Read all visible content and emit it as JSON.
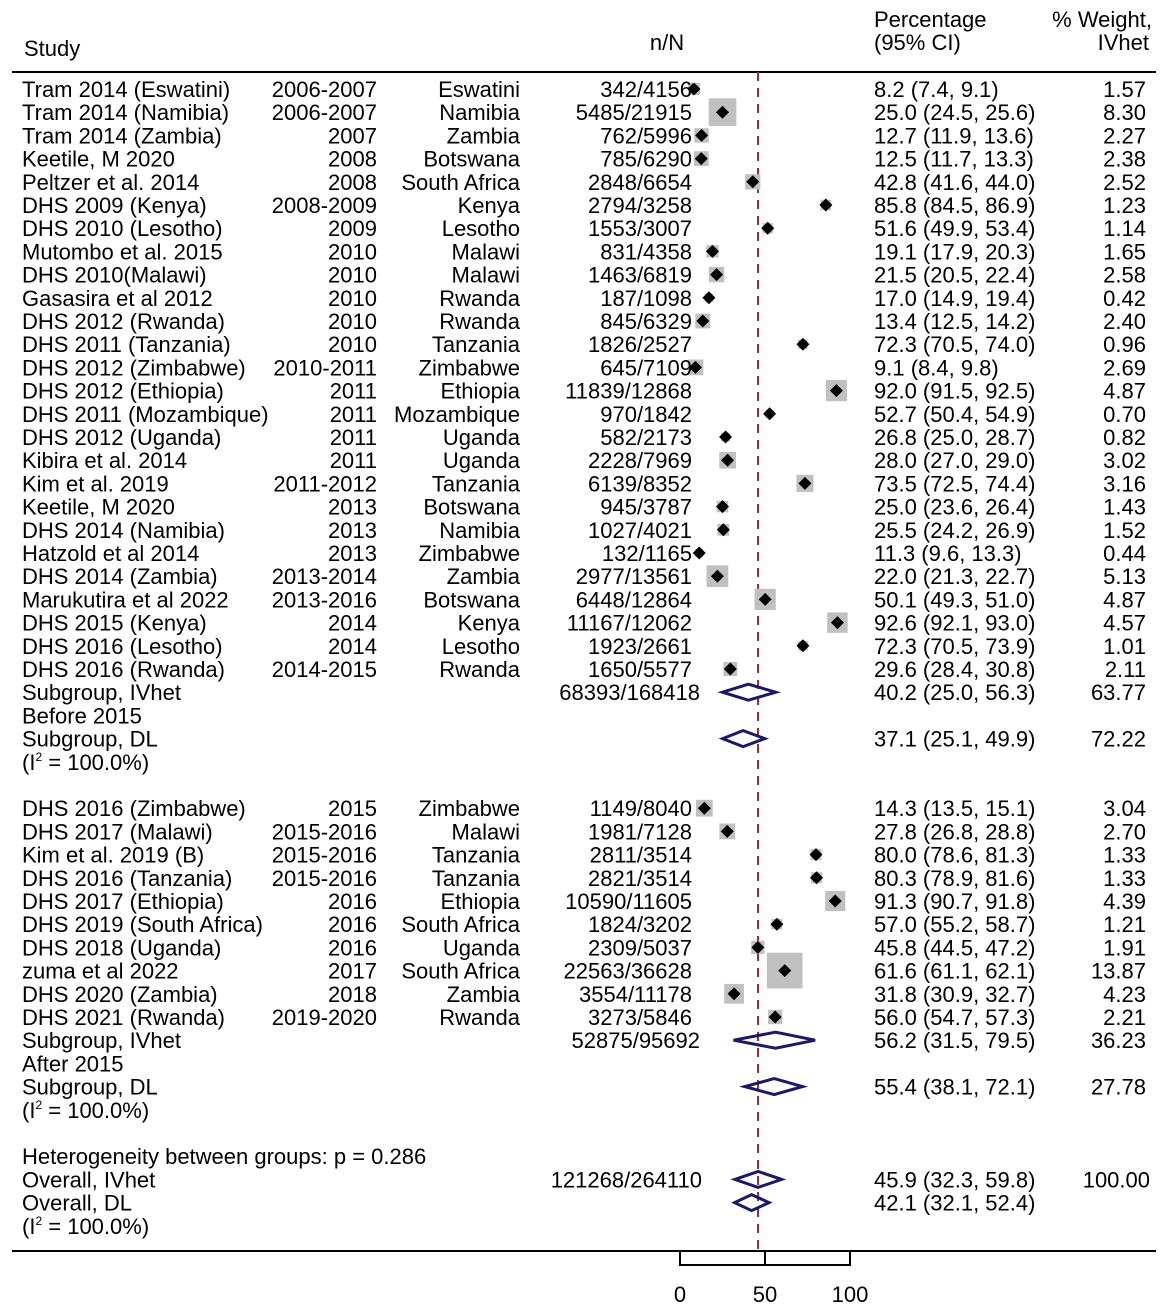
{
  "chart_data": {
    "type": "forest",
    "headers": {
      "study": "Study",
      "nn": "n/N",
      "pct_line1": "Percentage",
      "pct_line2": "(95% CI)",
      "wt_line1": "% Weight,",
      "wt_line2": "IVhet"
    },
    "groups": [
      {
        "studies": [
          {
            "study": "Tram 2014 (Eswatini)",
            "year": "2006-2007",
            "country": "Eswatini",
            "nN": "342/4156",
            "est": 8.2,
            "lo": 7.4,
            "hi": 9.1,
            "ci": "8.2 (7.4, 9.1)",
            "weight": "1.57"
          },
          {
            "study": "Tram 2014 (Namibia)",
            "year": "2006-2007",
            "country": "Namibia",
            "nN": "5485/21915",
            "est": 25.0,
            "lo": 24.5,
            "hi": 25.6,
            "ci": "25.0 (24.5, 25.6)",
            "weight": "8.30"
          },
          {
            "study": "Tram 2014 (Zambia)",
            "year": "2007",
            "country": "Zambia",
            "nN": "762/5996",
            "est": 12.7,
            "lo": 11.9,
            "hi": 13.6,
            "ci": "12.7 (11.9, 13.6)",
            "weight": "2.27"
          },
          {
            "study": "Keetile, M 2020",
            "year": "2008",
            "country": "Botswana",
            "nN": "785/6290",
            "est": 12.5,
            "lo": 11.7,
            "hi": 13.3,
            "ci": "12.5 (11.7, 13.3)",
            "weight": "2.38"
          },
          {
            "study": "Peltzer et al. 2014",
            "year": "2008",
            "country": "South Africa",
            "nN": "2848/6654",
            "est": 42.8,
            "lo": 41.6,
            "hi": 44.0,
            "ci": "42.8 (41.6, 44.0)",
            "weight": "2.52"
          },
          {
            "study": "DHS 2009 (Kenya)",
            "year": "2008-2009",
            "country": "Kenya",
            "nN": "2794/3258",
            "est": 85.8,
            "lo": 84.5,
            "hi": 86.9,
            "ci": "85.8 (84.5, 86.9)",
            "weight": "1.23"
          },
          {
            "study": "DHS 2010 (Lesotho)",
            "year": "2009",
            "country": "Lesotho",
            "nN": "1553/3007",
            "est": 51.6,
            "lo": 49.9,
            "hi": 53.4,
            "ci": "51.6 (49.9, 53.4)",
            "weight": "1.14"
          },
          {
            "study": "Mutombo et al. 2015",
            "year": "2010",
            "country": "Malawi",
            "nN": "831/4358",
            "est": 19.1,
            "lo": 17.9,
            "hi": 20.3,
            "ci": "19.1 (17.9, 20.3)",
            "weight": "1.65"
          },
          {
            "study": "DHS 2010(Malawi)",
            "year": "2010",
            "country": "Malawi",
            "nN": "1463/6819",
            "est": 21.5,
            "lo": 20.5,
            "hi": 22.4,
            "ci": "21.5 (20.5, 22.4)",
            "weight": "2.58"
          },
          {
            "study": "Gasasira et al 2012",
            "year": "2010",
            "country": "Rwanda",
            "nN": "187/1098",
            "est": 17.0,
            "lo": 14.9,
            "hi": 19.4,
            "ci": "17.0 (14.9, 19.4)",
            "weight": "0.42"
          },
          {
            "study": "DHS 2012 (Rwanda)",
            "year": "2010",
            "country": "Rwanda",
            "nN": "845/6329",
            "est": 13.4,
            "lo": 12.5,
            "hi": 14.2,
            "ci": "13.4 (12.5, 14.2)",
            "weight": "2.40"
          },
          {
            "study": "DHS 2011 (Tanzania)",
            "year": "2010",
            "country": "Tanzania",
            "nN": "1826/2527",
            "est": 72.3,
            "lo": 70.5,
            "hi": 74.0,
            "ci": "72.3 (70.5, 74.0)",
            "weight": "0.96"
          },
          {
            "study": "DHS 2012 (Zimbabwe)",
            "year": "2010-2011",
            "country": "Zimbabwe",
            "nN": "645/7109",
            "est": 9.1,
            "lo": 8.4,
            "hi": 9.8,
            "ci": "9.1 (8.4, 9.8)",
            "weight": "2.69"
          },
          {
            "study": "DHS 2012 (Ethiopia)",
            "year": "2011",
            "country": "Ethiopia",
            "nN": "11839/12868",
            "est": 92.0,
            "lo": 91.5,
            "hi": 92.5,
            "ci": "92.0 (91.5, 92.5)",
            "weight": "4.87"
          },
          {
            "study": "DHS 2011 (Mozambique)",
            "year": "2011",
            "country": "Mozambique",
            "nN": "970/1842",
            "est": 52.7,
            "lo": 50.4,
            "hi": 54.9,
            "ci": "52.7 (50.4, 54.9)",
            "weight": "0.70"
          },
          {
            "study": "DHS 2012 (Uganda)",
            "year": "2011",
            "country": "Uganda",
            "nN": "582/2173",
            "est": 26.8,
            "lo": 25.0,
            "hi": 28.7,
            "ci": "26.8 (25.0, 28.7)",
            "weight": "0.82"
          },
          {
            "study": "Kibira et al. 2014",
            "year": "2011",
            "country": "Uganda",
            "nN": "2228/7969",
            "est": 28.0,
            "lo": 27.0,
            "hi": 29.0,
            "ci": "28.0 (27.0, 29.0)",
            "weight": "3.02"
          },
          {
            "study": "Kim et al. 2019",
            "year": "2011-2012",
            "country": "Tanzania",
            "nN": "6139/8352",
            "est": 73.5,
            "lo": 72.5,
            "hi": 74.4,
            "ci": "73.5 (72.5, 74.4)",
            "weight": "3.16"
          },
          {
            "study": "Keetile, M 2020",
            "year": "2013",
            "country": "Botswana",
            "nN": "945/3787",
            "est": 25.0,
            "lo": 23.6,
            "hi": 26.4,
            "ci": "25.0 (23.6, 26.4)",
            "weight": "1.43"
          },
          {
            "study": "DHS 2014 (Namibia)",
            "year": "2013",
            "country": "Namibia",
            "nN": "1027/4021",
            "est": 25.5,
            "lo": 24.2,
            "hi": 26.9,
            "ci": "25.5 (24.2, 26.9)",
            "weight": "1.52"
          },
          {
            "study": "Hatzold et al 2014",
            "year": "2013",
            "country": "Zimbabwe",
            "nN": "132/1165",
            "est": 11.3,
            "lo": 9.6,
            "hi": 13.3,
            "ci": "11.3 (9.6, 13.3)",
            "weight": "0.44"
          },
          {
            "study": "DHS 2014 (Zambia)",
            "year": "2013-2014",
            "country": "Zambia",
            "nN": "2977/13561",
            "est": 22.0,
            "lo": 21.3,
            "hi": 22.7,
            "ci": "22.0 (21.3, 22.7)",
            "weight": "5.13"
          },
          {
            "study": "Marukutira et al 2022",
            "year": "2013-2016",
            "country": "Botswana",
            "nN": "6448/12864",
            "est": 50.1,
            "lo": 49.3,
            "hi": 51.0,
            "ci": "50.1 (49.3, 51.0)",
            "weight": "4.87"
          },
          {
            "study": "DHS 2015 (Kenya)",
            "year": "2014",
            "country": "Kenya",
            "nN": "11167/12062",
            "est": 92.6,
            "lo": 92.1,
            "hi": 93.0,
            "ci": "92.6 (92.1, 93.0)",
            "weight": "4.57"
          },
          {
            "study": "DHS 2016 (Lesotho)",
            "year": "2014",
            "country": "Lesotho",
            "nN": "1923/2661",
            "est": 72.3,
            "lo": 70.5,
            "hi": 73.9,
            "ci": "72.3 (70.5, 73.9)",
            "weight": "1.01"
          },
          {
            "study": "DHS 2016 (Rwanda)",
            "year": "2014-2015",
            "country": "Rwanda",
            "nN": "1650/5577",
            "est": 29.6,
            "lo": 28.4,
            "hi": 30.8,
            "ci": "29.6 (28.4, 30.8)",
            "weight": "2.11"
          }
        ],
        "subgroup_ivhet": {
          "label": "Subgroup, IVhet",
          "nN": "68393/168418",
          "est": 40.2,
          "lo": 25.0,
          "hi": 56.3,
          "ci": "40.2 (25.0, 56.3)",
          "weight": "63.77"
        },
        "group_label": "Before 2015",
        "subgroup_dl": {
          "label": "Subgroup, DL",
          "est": 37.1,
          "lo": 25.1,
          "hi": 49.9,
          "ci": "37.1 (25.1, 49.9)",
          "weight": "72.22"
        },
        "i2_prefix": "(I",
        "i2_sup": "2",
        "i2_rest": " = 100.0%)"
      },
      {
        "studies": [
          {
            "study": "DHS 2016 (Zimbabwe)",
            "year": "2015",
            "country": "Zimbabwe",
            "nN": "1149/8040",
            "est": 14.3,
            "lo": 13.5,
            "hi": 15.1,
            "ci": "14.3 (13.5, 15.1)",
            "weight": "3.04"
          },
          {
            "study": "DHS 2017 (Malawi)",
            "year": "2015-2016",
            "country": "Malawi",
            "nN": "1981/7128",
            "est": 27.8,
            "lo": 26.8,
            "hi": 28.8,
            "ci": "27.8 (26.8, 28.8)",
            "weight": "2.70"
          },
          {
            "study": "Kim et al. 2019 (B)",
            "year": "2015-2016",
            "country": "Tanzania",
            "nN": "2811/3514",
            "est": 80.0,
            "lo": 78.6,
            "hi": 81.3,
            "ci": "80.0 (78.6, 81.3)",
            "weight": "1.33"
          },
          {
            "study": "DHS 2016 (Tanzania)",
            "year": "2015-2016",
            "country": "Tanzania",
            "nN": "2821/3514",
            "est": 80.3,
            "lo": 78.9,
            "hi": 81.6,
            "ci": "80.3 (78.9, 81.6)",
            "weight": "1.33"
          },
          {
            "study": "DHS 2017 (Ethiopia)",
            "year": "2016",
            "country": "Ethiopia",
            "nN": "10590/11605",
            "est": 91.3,
            "lo": 90.7,
            "hi": 91.8,
            "ci": "91.3 (90.7, 91.8)",
            "weight": "4.39"
          },
          {
            "study": "DHS 2019 (South Africa)",
            "year": "2016",
            "country": "South Africa",
            "nN": "1824/3202",
            "est": 57.0,
            "lo": 55.2,
            "hi": 58.7,
            "ci": "57.0 (55.2, 58.7)",
            "weight": "1.21"
          },
          {
            "study": "DHS 2018 (Uganda)",
            "year": "2016",
            "country": "Uganda",
            "nN": "2309/5037",
            "est": 45.8,
            "lo": 44.5,
            "hi": 47.2,
            "ci": "45.8 (44.5, 47.2)",
            "weight": "1.91"
          },
          {
            "study": "zuma et al 2022",
            "year": "2017",
            "country": "South Africa",
            "nN": "22563/36628",
            "est": 61.6,
            "lo": 61.1,
            "hi": 62.1,
            "ci": "61.6 (61.1, 62.1)",
            "weight": "13.87"
          },
          {
            "study": "DHS 2020 (Zambia)",
            "year": "2018",
            "country": "Zambia",
            "nN": "3554/11178",
            "est": 31.8,
            "lo": 30.9,
            "hi": 32.7,
            "ci": "31.8 (30.9, 32.7)",
            "weight": "4.23"
          },
          {
            "study": "DHS 2021 (Rwanda)",
            "year": "2019-2020",
            "country": "Rwanda",
            "nN": "3273/5846",
            "est": 56.0,
            "lo": 54.7,
            "hi": 57.3,
            "ci": "56.0 (54.7, 57.3)",
            "weight": "2.21"
          }
        ],
        "subgroup_ivhet": {
          "label": "Subgroup, IVhet",
          "nN": "52875/95692",
          "est": 56.2,
          "lo": 31.5,
          "hi": 79.5,
          "ci": "56.2 (31.5, 79.5)",
          "weight": "36.23"
        },
        "group_label": "After 2015",
        "subgroup_dl": {
          "label": "Subgroup, DL",
          "est": 55.4,
          "lo": 38.1,
          "hi": 72.1,
          "ci": "55.4 (38.1, 72.1)",
          "weight": "27.78"
        },
        "i2_prefix": "(I",
        "i2_sup": "2",
        "i2_rest": " = 100.0%)"
      }
    ],
    "heterogeneity_text": "Heterogeneity between groups: p = 0.286",
    "overall_ivhet": {
      "label": "Overall, IVhet",
      "nN": "121268/264110",
      "est": 45.9,
      "lo": 32.3,
      "hi": 59.8,
      "ci": "45.9 (32.3, 59.8)",
      "weight": "100.00"
    },
    "overall_dl": {
      "label": "Overall, DL",
      "est": 42.1,
      "lo": 32.1,
      "hi": 52.4,
      "ci": "42.1 (32.1, 52.4)"
    },
    "overall_i2": {
      "prefix": "(I",
      "sup": "2",
      "rest": " = 100.0%)"
    },
    "reference_line": 45.9,
    "x_axis": {
      "ticks": [
        0,
        50,
        100
      ],
      "range": [
        0,
        100
      ]
    },
    "colors": {
      "diamond": "#1a1a66",
      "reference": "#a0282d",
      "box": "#c0c0c0",
      "marker": "#000000"
    }
  }
}
